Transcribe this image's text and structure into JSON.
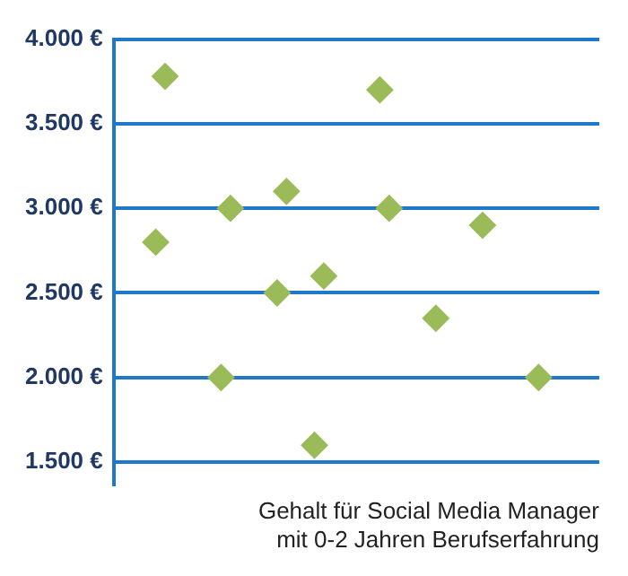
{
  "chart_data": {
    "type": "scatter",
    "xlabel": "Gehalt für Social Media Manager mit 0-2 Jahren Berufserfahrung",
    "categories": [
      null,
      null,
      null,
      null,
      null,
      null,
      null,
      null,
      null,
      null,
      null,
      null,
      null,
      null,
      null,
      null,
      null,
      null,
      null,
      null,
      null,
      null,
      null,
      null,
      null,
      null,
      null,
      null,
      null,
      null,
      null,
      null,
      null,
      null,
      null,
      null,
      null,
      null,
      null,
      null,
      null,
      null,
      null,
      null,
      null,
      null,
      null,
      null,
      null,
      null,
      null,
      null
    ],
    "values": [
      null,
      null,
      null,
      null,
      2800,
      3780,
      null,
      null,
      null,
      null,
      null,
      2000,
      3000,
      null,
      null,
      null,
      null,
      2500,
      3100,
      null,
      null,
      1600,
      2600,
      null,
      null,
      null,
      null,
      null,
      3700,
      3000,
      null,
      null,
      null,
      null,
      2350,
      null,
      null,
      null,
      null,
      2900,
      null,
      null,
      null,
      null,
      null,
      2000,
      null,
      null,
      null,
      null,
      null,
      null
    ],
    "color": "#9bbb59",
    "marker": "diamond",
    "ylim": [
      1370,
      4000
    ],
    "yticks": [
      {
        "value": 1500,
        "label": "1.500 €"
      },
      {
        "value": 2000,
        "label": "2.000 €"
      },
      {
        "value": 2500,
        "label": "2.500 €"
      },
      {
        "value": 3000,
        "label": "3.000 €"
      },
      {
        "value": 3500,
        "label": "3.500 €"
      },
      {
        "value": 4000,
        "label": "4.000 €"
      }
    ],
    "grid": "y",
    "tick_labels": "y"
  }
}
